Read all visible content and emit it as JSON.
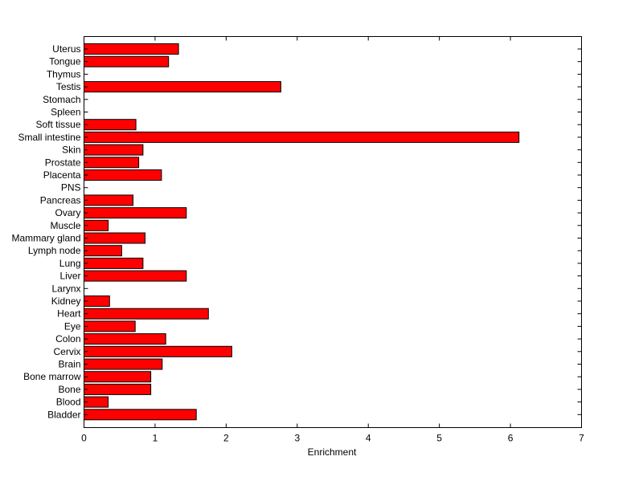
{
  "chart_data": {
    "type": "bar",
    "orientation": "horizontal",
    "title": "",
    "xlabel": "Enrichment",
    "ylabel": "",
    "xlim": [
      0,
      7
    ],
    "xticks": [
      0,
      1,
      2,
      3,
      4,
      5,
      6,
      7
    ],
    "grid": false,
    "legend": "none",
    "bar_color": "#ff0000",
    "bar_edge_color": "#000000",
    "categories": [
      "Uterus",
      "Tongue",
      "Thymus",
      "Testis",
      "Stomach",
      "Spleen",
      "Soft tissue",
      "Small intestine",
      "Skin",
      "Prostate",
      "Placenta",
      "PNS",
      "Pancreas",
      "Ovary",
      "Muscle",
      "Mammary gland",
      "Lymph node",
      "Lung",
      "Liver",
      "Larynx",
      "Kidney",
      "Heart",
      "Eye",
      "Colon",
      "Cervix",
      "Brain",
      "Bone marrow",
      "Bone",
      "Blood",
      "Bladder"
    ],
    "values": [
      1.33,
      1.19,
      0,
      2.77,
      0,
      0,
      0.73,
      6.12,
      0.83,
      0.77,
      1.09,
      0,
      0.69,
      1.44,
      0.34,
      0.86,
      0.53,
      0.83,
      1.44,
      0,
      0.36,
      1.75,
      0.72,
      1.15,
      2.08,
      1.1,
      0.94,
      0.94,
      0.34,
      1.58
    ]
  }
}
